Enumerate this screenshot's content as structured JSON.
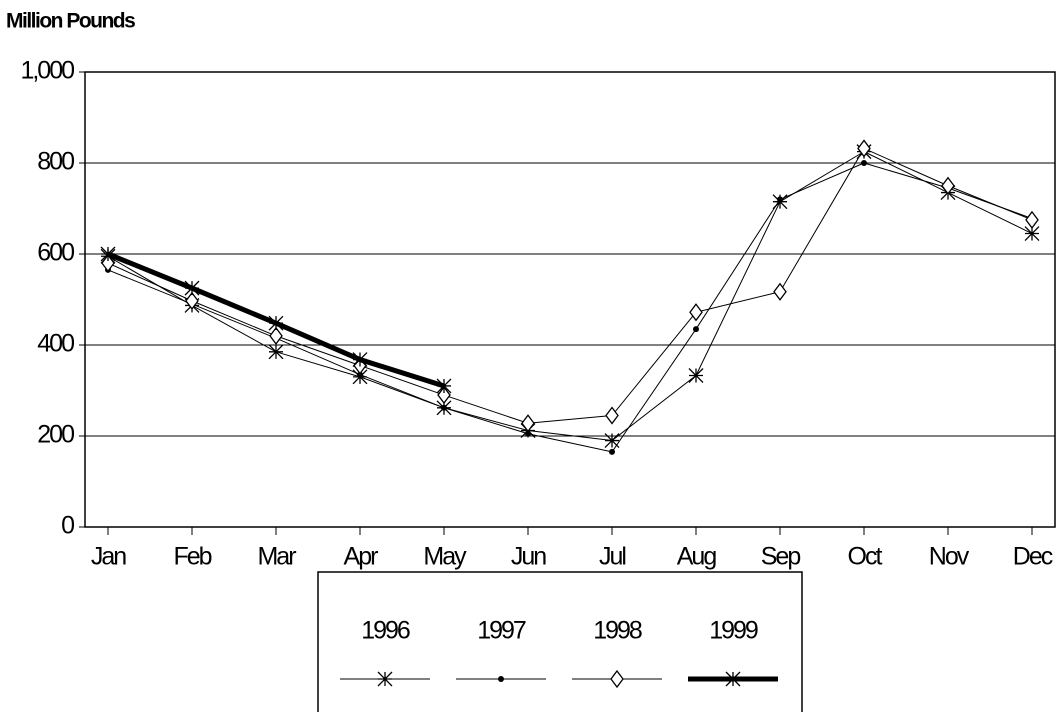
{
  "chart_data": {
    "type": "line",
    "y_label": "Million Pounds",
    "categories": [
      "Jan",
      "Feb",
      "Mar",
      "Apr",
      "May",
      "Jun",
      "Jul",
      "Aug",
      "Sep",
      "Oct",
      "Nov",
      "Dec"
    ],
    "ylim": [
      0,
      1000
    ],
    "yticks": [
      0,
      200,
      400,
      600,
      800,
      {
        "value": 1000,
        "label": "1,000"
      }
    ],
    "grid": true,
    "legend": "bottom",
    "series": [
      {
        "name": "1996",
        "color": "#000000",
        "marker": "star",
        "line_width": 1,
        "values": [
          595,
          487,
          385,
          330,
          262,
          212,
          190,
          333,
          715,
          825,
          735,
          645
        ]
      },
      {
        "name": "1997",
        "color": "#000000",
        "marker": "dot",
        "line_width": 1,
        "values": [
          565,
          490,
          415,
          335,
          262,
          205,
          165,
          435,
          720,
          800,
          745,
          678
        ]
      },
      {
        "name": "1998",
        "color": "#000000",
        "marker": "diamond",
        "line_width": 1,
        "values": [
          580,
          497,
          420,
          355,
          290,
          228,
          245,
          472,
          517,
          832,
          750,
          675
        ]
      },
      {
        "name": "1999",
        "color": "#000000",
        "marker": "star",
        "line_width": 5,
        "values": [
          600,
          525,
          448,
          368,
          310,
          null,
          null,
          null,
          null,
          null,
          null,
          null
        ]
      }
    ]
  }
}
